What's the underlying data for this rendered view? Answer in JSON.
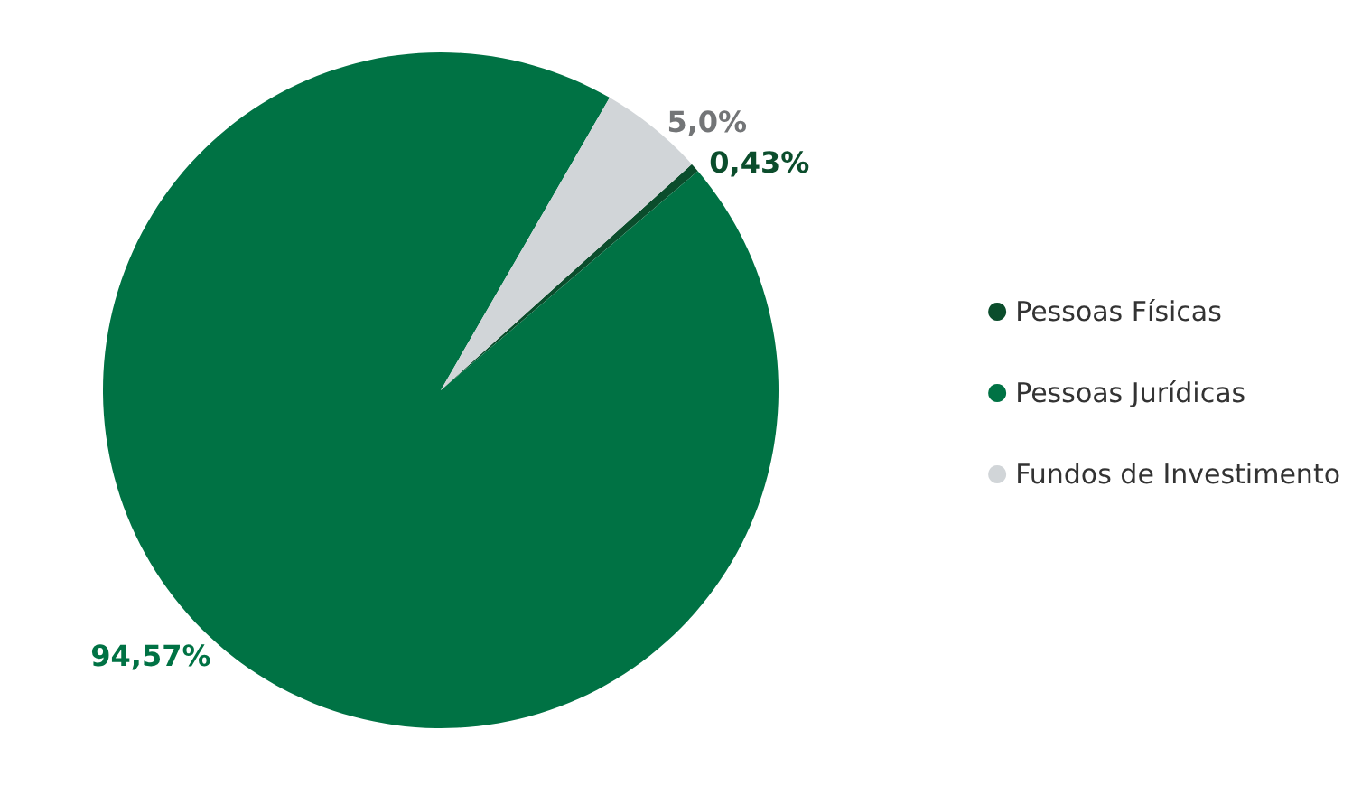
{
  "chart_data": {
    "type": "pie",
    "categories": [
      "Pessoas Físicas",
      "Pessoas Jurídicas",
      "Fundos de Investimento"
    ],
    "values": [
      0.43,
      94.57,
      5.0
    ],
    "colors": [
      "#0b4d2c",
      "#007244",
      "#d1d5d8"
    ],
    "value_labels": [
      "0,43%",
      "94,57%",
      "5,0%"
    ],
    "legend": "right"
  }
}
